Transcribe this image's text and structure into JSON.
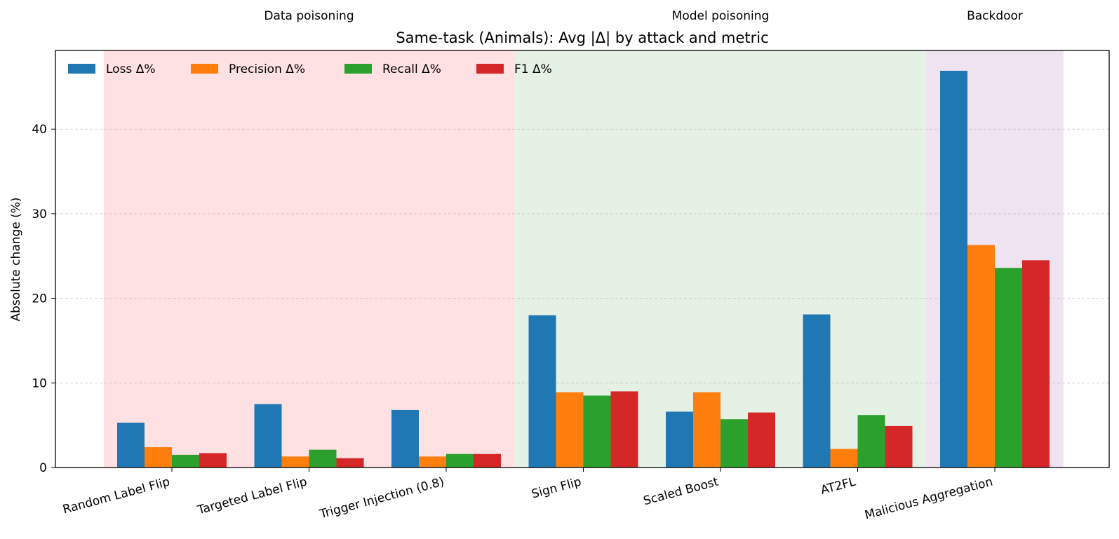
{
  "chart_data": {
    "type": "bar",
    "title": "Same-task (Animals): Avg |Δ| by attack and metric",
    "xlabel": "",
    "ylabel": "Absolute change (%)",
    "ylim": [
      0,
      49.3
    ],
    "yticks": [
      0,
      10,
      20,
      30,
      40
    ],
    "grid": "y-dashed",
    "legend_placement": "top-left",
    "categories": [
      "Random Label Flip",
      "Targeted Label Flip",
      "Trigger Injection (0.8)",
      "Sign Flip",
      "Scaled Boost",
      "AT2FL",
      "Malicious Aggregation"
    ],
    "series": [
      {
        "name": "Loss Δ%",
        "color": "#1f77b4",
        "values": [
          5.3,
          7.5,
          6.8,
          18.0,
          6.6,
          18.1,
          46.9
        ]
      },
      {
        "name": "Precision Δ%",
        "color": "#ff7f0e",
        "values": [
          2.4,
          1.3,
          1.3,
          8.9,
          8.9,
          2.2,
          26.3
        ]
      },
      {
        "name": "Recall Δ%",
        "color": "#2ca02c",
        "values": [
          1.5,
          2.1,
          1.6,
          8.5,
          5.7,
          6.2,
          23.6
        ]
      },
      {
        "name": "F1 Δ%",
        "color": "#d62728",
        "values": [
          1.7,
          1.1,
          1.6,
          9.0,
          6.5,
          4.9,
          24.5
        ]
      }
    ],
    "groups": [
      {
        "label": "Data poisoning",
        "from": 0,
        "to": 2,
        "color": "#ffe1e3"
      },
      {
        "label": "Model poisoning",
        "from": 3,
        "to": 5,
        "color": "#e6f1e5"
      },
      {
        "label": "Backdoor",
        "from": 6,
        "to": 6,
        "color": "#efe3f2"
      }
    ]
  }
}
